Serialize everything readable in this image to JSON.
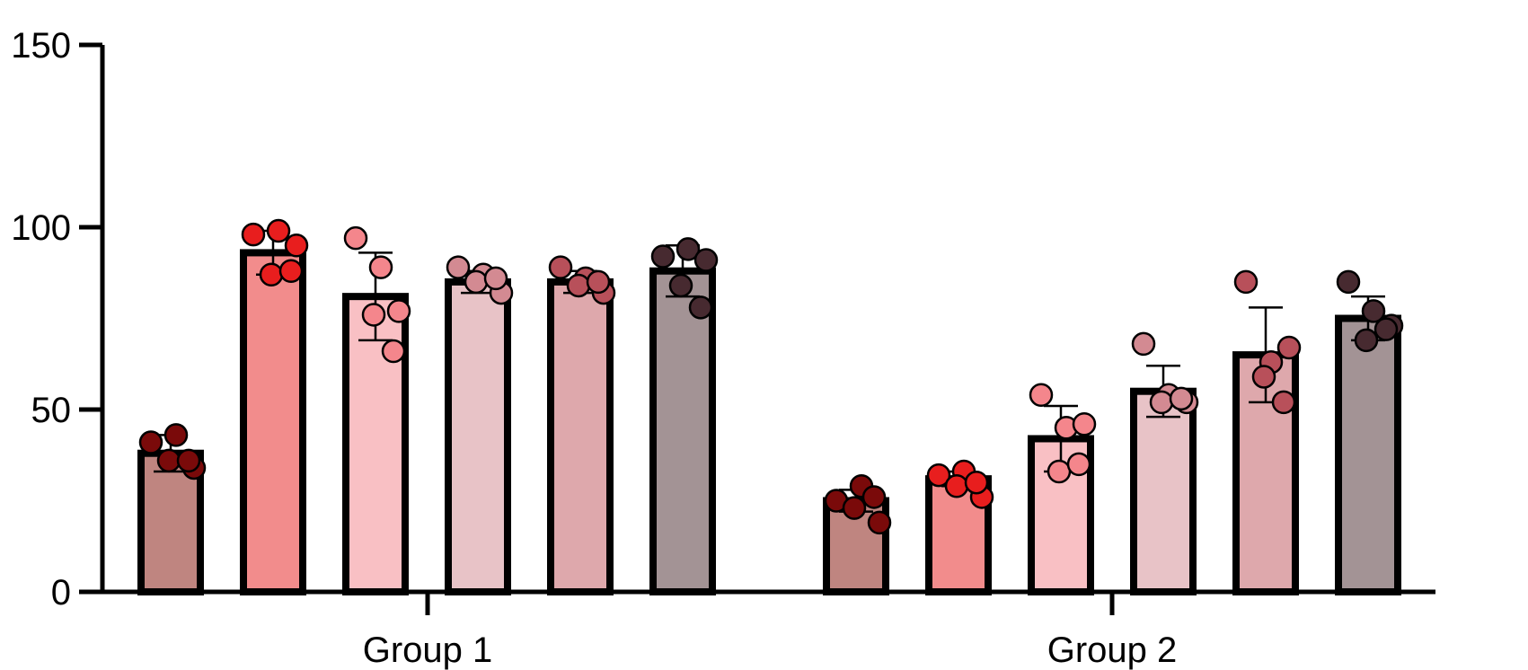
{
  "chart_data": {
    "type": "bar",
    "title": "",
    "xlabel": "",
    "ylabel": "",
    "ylim": [
      0,
      150
    ],
    "yticks": [
      0,
      50,
      100,
      150
    ],
    "grid": false,
    "legend": "none",
    "groups": [
      "Group 1",
      "Group 2"
    ],
    "bar_colors": [
      "#BF8580",
      "#F28C8C",
      "#F9C0C4",
      "#E8C3C7",
      "#DEA8AC",
      "#A39395"
    ],
    "point_colors": [
      "#7A0A0A",
      "#E81E1E",
      "#F4868C",
      "#D38A92",
      "#B8505A",
      "#472A30"
    ],
    "bars": [
      [
        {
          "mean": 38,
          "sd": 5,
          "points": [
            41,
            43,
            34,
            36,
            36
          ]
        },
        {
          "mean": 93,
          "sd": 6,
          "points": [
            98,
            99,
            95,
            87,
            88
          ]
        },
        {
          "mean": 81,
          "sd": 12,
          "points": [
            97,
            89,
            77,
            76,
            66
          ]
        },
        {
          "mean": 85,
          "sd": 3,
          "points": [
            89,
            87,
            82,
            85,
            86
          ]
        },
        {
          "mean": 85,
          "sd": 3,
          "points": [
            89,
            86,
            82,
            84,
            85
          ]
        },
        {
          "mean": 88,
          "sd": 7,
          "points": [
            92,
            94,
            91,
            84,
            78
          ]
        }
      ],
      [
        {
          "mean": 25,
          "sd": 3,
          "points": [
            25,
            29,
            19,
            23,
            26
          ]
        },
        {
          "mean": 31,
          "sd": 2,
          "points": [
            32,
            33,
            26,
            29,
            30
          ]
        },
        {
          "mean": 42,
          "sd": 9,
          "points": [
            54,
            45,
            46,
            33,
            35
          ]
        },
        {
          "mean": 55,
          "sd": 7,
          "points": [
            68,
            54,
            52,
            52,
            53
          ]
        },
        {
          "mean": 65,
          "sd": 13,
          "points": [
            85,
            63,
            67,
            59,
            52
          ]
        },
        {
          "mean": 75,
          "sd": 6,
          "points": [
            85,
            77,
            73,
            69,
            72
          ]
        }
      ]
    ]
  }
}
